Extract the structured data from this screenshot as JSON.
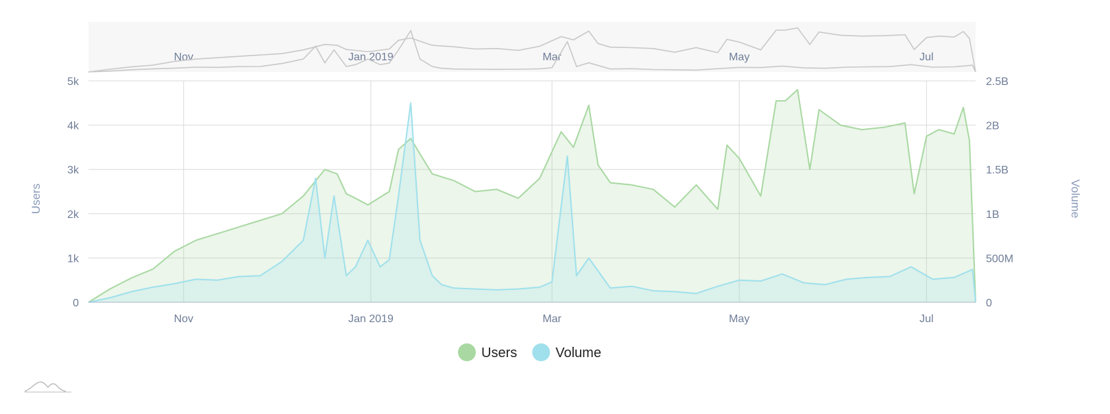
{
  "chart_data": {
    "type": "area",
    "x_ticks": [
      "Nov",
      "Jan 2019",
      "Mar",
      "May",
      "Jul"
    ],
    "xlim": [
      "2018-10-01",
      "2019-07-17"
    ],
    "y_left": {
      "label": "Users",
      "lim": [
        0,
        5000
      ],
      "ticks": [
        "0",
        "1k",
        "2k",
        "3k",
        "4k",
        "5k"
      ]
    },
    "y_right": {
      "label": "Volume",
      "lim": [
        0,
        2500000000
      ],
      "ticks": [
        "0",
        "500M",
        "1B",
        "1.5B",
        "2B",
        "2.5B"
      ]
    },
    "grid": true,
    "navigator": true,
    "legend": {
      "position": "bottom-center",
      "items": [
        "Users",
        "Volume"
      ]
    },
    "colors": {
      "Users": "#a9d8a2",
      "Volume": "#9fe0ec",
      "grid": "#d9d9d9",
      "navigator": "#c8c8c8"
    },
    "series": [
      {
        "name": "Users",
        "axis": "left",
        "x": [
          "2018-10-01",
          "2018-10-08",
          "2018-10-15",
          "2018-10-22",
          "2018-10-29",
          "2018-11-05",
          "2018-11-12",
          "2018-11-19",
          "2018-11-26",
          "2018-12-03",
          "2018-12-10",
          "2018-12-17",
          "2018-12-21",
          "2018-12-24",
          "2018-12-27",
          "2018-12-31",
          "2019-01-07",
          "2019-01-10",
          "2019-01-14",
          "2019-01-17",
          "2019-01-21",
          "2019-01-28",
          "2019-02-04",
          "2019-02-11",
          "2019-02-18",
          "2019-02-25",
          "2019-03-04",
          "2019-03-08",
          "2019-03-13",
          "2019-03-16",
          "2019-03-20",
          "2019-03-27",
          "2019-04-03",
          "2019-04-10",
          "2019-04-17",
          "2019-04-24",
          "2019-04-27",
          "2019-05-01",
          "2019-05-08",
          "2019-05-13",
          "2019-05-16",
          "2019-05-20",
          "2019-05-24",
          "2019-05-27",
          "2019-06-03",
          "2019-06-10",
          "2019-06-17",
          "2019-06-24",
          "2019-06-27",
          "2019-07-01",
          "2019-07-05",
          "2019-07-10",
          "2019-07-13",
          "2019-07-15",
          "2019-07-17"
        ],
        "values": [
          0,
          300,
          550,
          750,
          1150,
          1400,
          1550,
          1700,
          1850,
          2000,
          2400,
          3000,
          2900,
          2450,
          2350,
          2200,
          2500,
          3450,
          3700,
          3350,
          2900,
          2750,
          2500,
          2550,
          2350,
          2800,
          3850,
          3500,
          4450,
          3100,
          2700,
          2650,
          2550,
          2150,
          2650,
          2100,
          3550,
          3250,
          2400,
          4550,
          4550,
          4800,
          3000,
          4350,
          4000,
          3900,
          3950,
          4050,
          2450,
          3750,
          3900,
          3800,
          4400,
          3650,
          0
        ]
      },
      {
        "name": "Volume",
        "axis": "right",
        "x": [
          "2018-10-01",
          "2018-10-08",
          "2018-10-15",
          "2018-10-22",
          "2018-10-29",
          "2018-11-05",
          "2018-11-12",
          "2018-11-19",
          "2018-11-26",
          "2018-12-03",
          "2018-12-10",
          "2018-12-14",
          "2018-12-17",
          "2018-12-20",
          "2018-12-24",
          "2018-12-27",
          "2018-12-31",
          "2019-01-04",
          "2019-01-07",
          "2019-01-10",
          "2019-01-14",
          "2019-01-17",
          "2019-01-21",
          "2019-01-24",
          "2019-01-28",
          "2019-02-04",
          "2019-02-11",
          "2019-02-18",
          "2019-02-25",
          "2019-03-01",
          "2019-03-06",
          "2019-03-09",
          "2019-03-13",
          "2019-03-20",
          "2019-03-27",
          "2019-04-03",
          "2019-04-10",
          "2019-04-17",
          "2019-04-24",
          "2019-05-01",
          "2019-05-08",
          "2019-05-15",
          "2019-05-22",
          "2019-05-29",
          "2019-06-05",
          "2019-06-12",
          "2019-06-19",
          "2019-06-26",
          "2019-07-03",
          "2019-07-10",
          "2019-07-16",
          "2019-07-17"
        ],
        "values": [
          0,
          50000000,
          120000000,
          170000000,
          210000000,
          260000000,
          250000000,
          290000000,
          300000000,
          460000000,
          700000000,
          1400000000,
          500000000,
          1200000000,
          300000000,
          400000000,
          700000000,
          400000000,
          480000000,
          1200000000,
          2250000000,
          700000000,
          300000000,
          200000000,
          160000000,
          150000000,
          140000000,
          150000000,
          170000000,
          230000000,
          1650000000,
          300000000,
          500000000,
          160000000,
          180000000,
          130000000,
          120000000,
          100000000,
          180000000,
          250000000,
          240000000,
          320000000,
          220000000,
          200000000,
          260000000,
          280000000,
          290000000,
          400000000,
          260000000,
          280000000,
          370000000,
          0
        ]
      }
    ]
  }
}
